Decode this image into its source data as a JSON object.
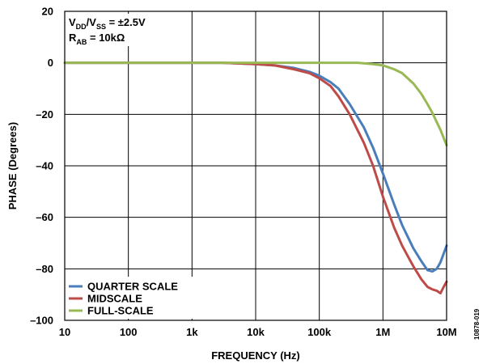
{
  "chart_data": {
    "type": "line",
    "xlabel": "FREQUENCY (Hz)",
    "ylabel": "PHASE (Degrees)",
    "x_scale": "log",
    "xlim": [
      10,
      10000000
    ],
    "ylim": [
      -100,
      20
    ],
    "grid": true,
    "legend_position": "bottom-left",
    "x_ticks": [
      {
        "value": 10,
        "label": "10"
      },
      {
        "value": 100,
        "label": "100"
      },
      {
        "value": 1000,
        "label": "1k"
      },
      {
        "value": 10000,
        "label": "10k"
      },
      {
        "value": 100000,
        "label": "100k"
      },
      {
        "value": 1000000,
        "label": "1M"
      },
      {
        "value": 10000000,
        "label": "10M"
      }
    ],
    "y_ticks": [
      {
        "value": 20,
        "label": "20"
      },
      {
        "value": 0,
        "label": "0"
      },
      {
        "value": -20,
        "label": "–20"
      },
      {
        "value": -40,
        "label": "–40"
      },
      {
        "value": -60,
        "label": "–60"
      },
      {
        "value": -80,
        "label": "–80"
      },
      {
        "value": -100,
        "label": "–100"
      }
    ],
    "annotation": {
      "line1": {
        "V": "V",
        "DD": "DD",
        "mid": "/V",
        "SS": "SS",
        "val": " = ±2.5V"
      },
      "line2": {
        "R": "R",
        "AB": "AB",
        "val": " = 10kΩ"
      }
    },
    "series": [
      {
        "name": "QUARTER SCALE",
        "color": "#4a7ebb",
        "points": [
          [
            10,
            0
          ],
          [
            30,
            0
          ],
          [
            100,
            0
          ],
          [
            300,
            0
          ],
          [
            1000,
            0
          ],
          [
            3000,
            0
          ],
          [
            10000,
            -0.5
          ],
          [
            20000,
            -1
          ],
          [
            40000,
            -2
          ],
          [
            70000,
            -3.5
          ],
          [
            100000,
            -5
          ],
          [
            150000,
            -7.5
          ],
          [
            200000,
            -10
          ],
          [
            300000,
            -16
          ],
          [
            500000,
            -25
          ],
          [
            700000,
            -33
          ],
          [
            1000000,
            -43
          ],
          [
            1500000,
            -55
          ],
          [
            2000000,
            -63
          ],
          [
            3000000,
            -72
          ],
          [
            4000000,
            -77
          ],
          [
            5000000,
            -80.5
          ],
          [
            6000000,
            -81
          ],
          [
            7000000,
            -80
          ],
          [
            8000000,
            -77.5
          ],
          [
            10000000,
            -71
          ]
        ]
      },
      {
        "name": "MIDSCALE",
        "color": "#be4b48",
        "points": [
          [
            10,
            0
          ],
          [
            30,
            0
          ],
          [
            100,
            0
          ],
          [
            300,
            0
          ],
          [
            1000,
            0
          ],
          [
            3000,
            0
          ],
          [
            10000,
            -0.5
          ],
          [
            20000,
            -1
          ],
          [
            40000,
            -2.5
          ],
          [
            70000,
            -4
          ],
          [
            100000,
            -6
          ],
          [
            150000,
            -9
          ],
          [
            200000,
            -13
          ],
          [
            300000,
            -20
          ],
          [
            500000,
            -31
          ],
          [
            700000,
            -40
          ],
          [
            1000000,
            -52
          ],
          [
            1500000,
            -64
          ],
          [
            2000000,
            -71
          ],
          [
            3000000,
            -79
          ],
          [
            4000000,
            -84
          ],
          [
            5000000,
            -87
          ],
          [
            6000000,
            -88
          ],
          [
            7000000,
            -88.5
          ],
          [
            8000000,
            -89.5
          ],
          [
            9000000,
            -87
          ],
          [
            10000000,
            -85
          ]
        ]
      },
      {
        "name": "FULL-SCALE",
        "color": "#98b954",
        "points": [
          [
            10,
            0
          ],
          [
            100,
            0
          ],
          [
            1000,
            0
          ],
          [
            10000,
            0
          ],
          [
            50000,
            0
          ],
          [
            100000,
            0
          ],
          [
            200000,
            0
          ],
          [
            400000,
            0
          ],
          [
            700000,
            -0.5
          ],
          [
            1000000,
            -1
          ],
          [
            1500000,
            -2.5
          ],
          [
            2000000,
            -4
          ],
          [
            3000000,
            -8
          ],
          [
            4000000,
            -12
          ],
          [
            5000000,
            -16
          ],
          [
            6000000,
            -19.5
          ],
          [
            7000000,
            -23
          ],
          [
            8000000,
            -26
          ],
          [
            10000000,
            -32
          ]
        ]
      }
    ]
  },
  "watermark": "10878-019"
}
